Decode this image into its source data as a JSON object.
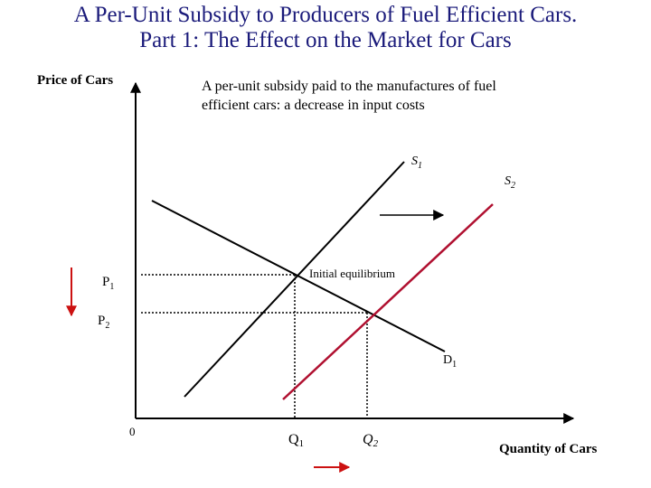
{
  "slide": {
    "title_line1": "A Per-Unit Subsidy to Producers of Fuel Efficient Cars.",
    "title_line2": "Part 1:  The Effect on the Market for Cars"
  },
  "diagram": {
    "y_axis_label": "Price of Cars",
    "x_axis_label": "Quantity of Cars",
    "origin_label": "0",
    "note_line1": "A per-unit subsidy paid to the manufactures of fuel",
    "note_line2": "efficient cars:  a decrease in input costs",
    "supply1": {
      "label": "S",
      "sub": "1"
    },
    "supply2": {
      "label": "S",
      "sub": "2"
    },
    "demand": {
      "label": "D",
      "sub": "1"
    },
    "p1": {
      "label": "P",
      "sub": "1"
    },
    "p2": {
      "label": "P",
      "sub": "2"
    },
    "q1": {
      "label": "Q",
      "sub": "1"
    },
    "q2": {
      "label": "Q",
      "sub": "2"
    },
    "initial_equilibrium_label": "Initial equilibrium",
    "colors": {
      "title": "#1a1a7a",
      "new_supply": "#b01030",
      "arrows": "#cc1111",
      "lines": "#000000"
    }
  }
}
